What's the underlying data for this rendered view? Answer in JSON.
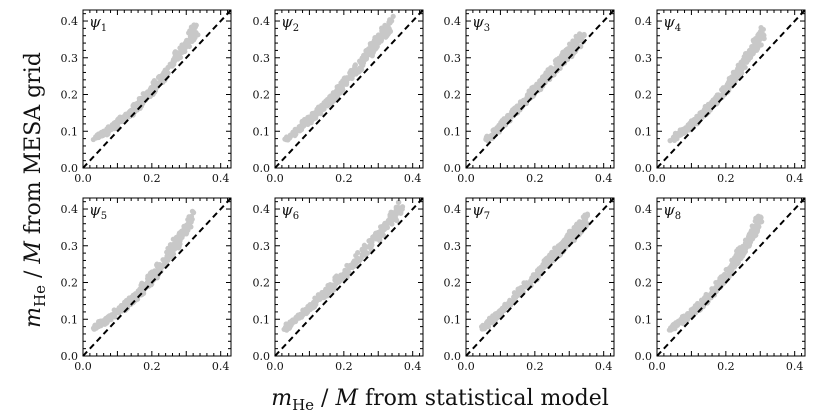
{
  "figure": {
    "xlabel": "m_He / M from statistical model",
    "ylabel": "m_He / M from MESA grid",
    "xlabel_parts": {
      "sym": "m",
      "sub": "He",
      "mid": " / ",
      "sym2": "M",
      "rest": " from statistical model"
    },
    "ylabel_parts": {
      "sym": "m",
      "sub": "He",
      "mid": " / ",
      "sym2": "M",
      "rest": " from MESA grid"
    },
    "colors": {
      "points": "#c8c8c8",
      "reference_line": "#000000",
      "axes": "#000000"
    }
  },
  "chart_data": [
    {
      "type": "scatter",
      "title": "ψ1",
      "label_parts": [
        "ψ",
        "1"
      ],
      "xlim": [
        0,
        0.43
      ],
      "ylim": [
        0,
        0.43
      ],
      "xticks": [
        "0.0",
        "0.2",
        "0.4"
      ],
      "yticks": [
        "0.0",
        "0.1",
        "0.2",
        "0.3",
        "0.4"
      ],
      "reference_line": "y = x",
      "x_range": [
        0.03,
        0.33
      ],
      "y_range": [
        0.075,
        0.38
      ],
      "shape": 0.12
    },
    {
      "type": "scatter",
      "title": "ψ2",
      "label_parts": [
        "ψ",
        "2"
      ],
      "xlim": [
        0,
        0.43
      ],
      "ylim": [
        0,
        0.43
      ],
      "xticks": [
        "0.0",
        "0.2",
        "0.4"
      ],
      "yticks": [
        "0.0",
        "0.1",
        "0.2",
        "0.3",
        "0.4"
      ],
      "reference_line": "y = x",
      "x_range": [
        0.03,
        0.34
      ],
      "y_range": [
        0.075,
        0.4
      ],
      "shape": 0.08
    },
    {
      "type": "scatter",
      "title": "ψ3",
      "label_parts": [
        "ψ",
        "3"
      ],
      "xlim": [
        0,
        0.43
      ],
      "ylim": [
        0,
        0.43
      ],
      "xticks": [
        "0.0",
        "0.2",
        "0.4"
      ],
      "yticks": [
        "0.0",
        "0.1",
        "0.2",
        "0.3",
        "0.4"
      ],
      "reference_line": "y = x",
      "x_range": [
        0.06,
        0.34
      ],
      "y_range": [
        0.075,
        0.36
      ],
      "shape": 0.02
    },
    {
      "type": "scatter",
      "title": "ψ4",
      "label_parts": [
        "ψ",
        "4"
      ],
      "xlim": [
        0,
        0.43
      ],
      "ylim": [
        0,
        0.43
      ],
      "xticks": [
        "0.0",
        "0.2",
        "0.4"
      ],
      "yticks": [
        "0.0",
        "0.1",
        "0.2",
        "0.3",
        "0.4"
      ],
      "reference_line": "y = x",
      "x_range": [
        0.04,
        0.31
      ],
      "y_range": [
        0.075,
        0.37
      ],
      "shape": 0.12
    },
    {
      "type": "scatter",
      "title": "ψ5",
      "label_parts": [
        "ψ",
        "5"
      ],
      "xlim": [
        0,
        0.43
      ],
      "ylim": [
        0,
        0.43
      ],
      "xticks": [
        "0.0",
        "0.2",
        "0.4"
      ],
      "yticks": [
        "0.0",
        "0.1",
        "0.2",
        "0.3",
        "0.4"
      ],
      "reference_line": "y = x",
      "x_range": [
        0.03,
        0.32
      ],
      "y_range": [
        0.075,
        0.38
      ],
      "shape": 0.14
    },
    {
      "type": "scatter",
      "title": "ψ6",
      "label_parts": [
        "ψ",
        "6"
      ],
      "xlim": [
        0,
        0.43
      ],
      "ylim": [
        0,
        0.43
      ],
      "xticks": [
        "0.0",
        "0.2",
        "0.4"
      ],
      "yticks": [
        "0.0",
        "0.1",
        "0.2",
        "0.3",
        "0.4"
      ],
      "reference_line": "y = x",
      "x_range": [
        0.03,
        0.37
      ],
      "y_range": [
        0.075,
        0.41
      ],
      "shape": 0.06
    },
    {
      "type": "scatter",
      "title": "ψ7",
      "label_parts": [
        "ψ",
        "7"
      ],
      "xlim": [
        0,
        0.43
      ],
      "ylim": [
        0,
        0.43
      ],
      "xticks": [
        "0.0",
        "0.2",
        "0.4"
      ],
      "yticks": [
        "0.0",
        "0.1",
        "0.2",
        "0.3",
        "0.4"
      ],
      "reference_line": "y = x",
      "x_range": [
        0.05,
        0.35
      ],
      "y_range": [
        0.075,
        0.37
      ],
      "shape": 0.02
    },
    {
      "type": "scatter",
      "title": "ψ8",
      "label_parts": [
        "ψ",
        "8"
      ],
      "xlim": [
        0,
        0.43
      ],
      "ylim": [
        0,
        0.43
      ],
      "xticks": [
        "0.0",
        "0.2",
        "0.4"
      ],
      "yticks": [
        "0.0",
        "0.1",
        "0.2",
        "0.3",
        "0.4"
      ],
      "reference_line": "y = x",
      "x_range": [
        0.04,
        0.3
      ],
      "y_range": [
        0.075,
        0.37
      ],
      "shape": 0.14
    }
  ]
}
